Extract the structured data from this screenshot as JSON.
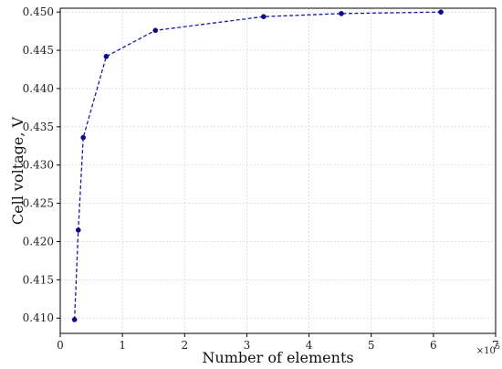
{
  "chart_data": {
    "type": "line",
    "xlabel": "Number of elements",
    "ylabel": "Cell voltage, V",
    "x_multiplier_label": "×10",
    "x_multiplier_exponent": "5",
    "xlim": [
      0,
      7
    ],
    "ylim": [
      0.408,
      0.4505
    ],
    "x_ticks": [
      0,
      1,
      2,
      3,
      4,
      5,
      6,
      7
    ],
    "x_tick_labels": [
      "0",
      "1",
      "2",
      "3",
      "4",
      "5",
      "6",
      "7"
    ],
    "y_ticks": [
      0.41,
      0.415,
      0.42,
      0.425,
      0.43,
      0.435,
      0.44,
      0.445,
      0.45
    ],
    "y_tick_labels": [
      "0.410",
      "0.415",
      "0.420",
      "0.425",
      "0.430",
      "0.435",
      "0.440",
      "0.445",
      "0.450"
    ],
    "grid": true,
    "series": [
      {
        "color": "#1a1aa8",
        "line_style": "dashed",
        "marker": "circle",
        "x": [
          0.23,
          0.29,
          0.37,
          0.74,
          1.53,
          3.27,
          4.52,
          6.12
        ],
        "y": [
          0.4098,
          0.4215,
          0.4336,
          0.4442,
          0.4476,
          0.4494,
          0.4498,
          0.45
        ]
      }
    ]
  }
}
